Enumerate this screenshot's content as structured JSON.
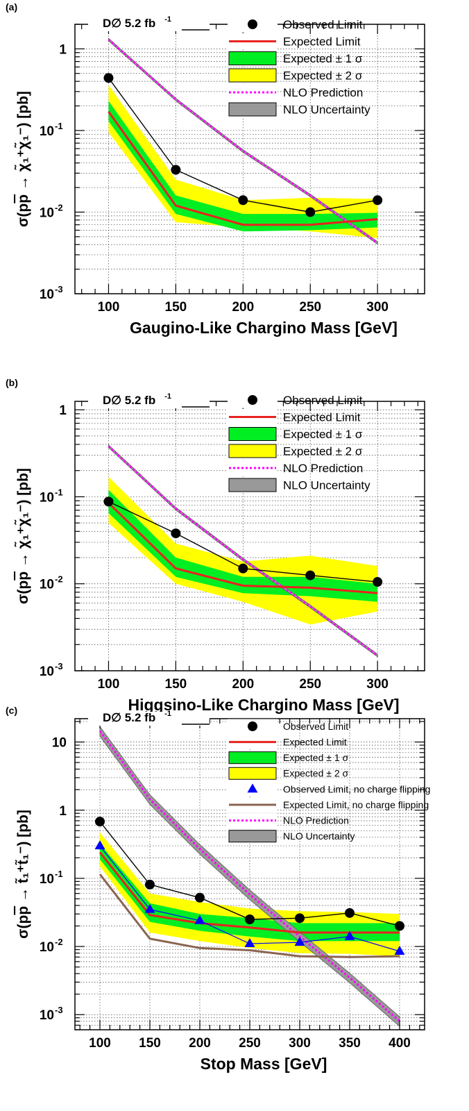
{
  "chart_data": [
    {
      "panel_label": "(a)",
      "type": "line",
      "experiment_label": "D∅ 5.2 fb",
      "experiment_sup": "-1",
      "xlabel": "Gaugino-Like Chargino Mass [GeV]",
      "ylabel_prefix": "σ(p",
      "ylabel_pbar": "p",
      "ylabel_arrow": " → ",
      "ylabel_final": "χ̃₁⁺χ̃₁⁻",
      "ylabel_suffix": ") [pb]",
      "xlim": [
        75,
        335
      ],
      "ylim": [
        0.001,
        2
      ],
      "yscale": "log",
      "grid": true,
      "xticks": [
        100,
        150,
        200,
        250,
        300
      ],
      "yticks": [
        {
          "v": 0.001,
          "b": "10",
          "e": "-3"
        },
        {
          "v": 0.01,
          "b": "10",
          "e": "-2"
        },
        {
          "v": 0.1,
          "b": "10",
          "e": "-1"
        },
        {
          "v": 1,
          "b": "1",
          "e": ""
        }
      ],
      "legend": {
        "placement": "top-right",
        "entries": [
          {
            "kind": "marker",
            "label": "Observed Limit",
            "color": "#000000"
          },
          {
            "kind": "line",
            "label": "Expected Limit",
            "color": "#e8231f"
          },
          {
            "kind": "box",
            "label": "Expected ± 1 σ",
            "color": "#00ee22"
          },
          {
            "kind": "box",
            "label": "Expected ± 2 σ",
            "color": "#ffff00"
          },
          {
            "kind": "dotted",
            "label": "NLO Prediction",
            "color": "#ff00ff"
          },
          {
            "kind": "band",
            "label": "NLO Uncertainty",
            "color": "#999999"
          }
        ]
      },
      "x": [
        100,
        150,
        200,
        250,
        300
      ],
      "series": [
        {
          "name": "Observed Limit",
          "values": [
            0.44,
            0.033,
            0.014,
            0.01,
            0.014
          ]
        },
        {
          "name": "Expected Limit",
          "values": [
            0.17,
            0.012,
            0.007,
            0.007,
            0.0082
          ]
        },
        {
          "name": "Expected ± 1 σ",
          "low": [
            0.13,
            0.0095,
            0.0058,
            0.006,
            0.0065
          ],
          "high": [
            0.23,
            0.016,
            0.0095,
            0.0095,
            0.0098
          ]
        },
        {
          "name": "Expected ± 2 σ",
          "low": [
            0.095,
            0.0075,
            0.0065,
            0.0058,
            0.0048
          ],
          "high": [
            0.36,
            0.025,
            0.014,
            0.015,
            0.0145
          ]
        },
        {
          "name": "NLO Prediction",
          "values": [
            1.3,
            0.24,
            0.056,
            0.016,
            0.0042
          ]
        },
        {
          "name": "NLO Uncertainty",
          "rel_width": 0.035
        }
      ]
    },
    {
      "panel_label": "(b)",
      "type": "line",
      "experiment_label": "D∅ 5.2 fb",
      "experiment_sup": "-1",
      "xlabel": "Higgsino-Like Chargino Mass [GeV]",
      "ylabel_prefix": "σ(p",
      "ylabel_pbar": "p",
      "ylabel_arrow": " → ",
      "ylabel_final": "χ̃₁⁺χ̃₁⁻",
      "ylabel_suffix": ") [pb]",
      "xlim": [
        75,
        335
      ],
      "ylim": [
        0.001,
        1.25
      ],
      "yscale": "log",
      "grid": true,
      "xticks": [
        100,
        150,
        200,
        250,
        300
      ],
      "yticks": [
        {
          "v": 0.001,
          "b": "10",
          "e": "-3"
        },
        {
          "v": 0.01,
          "b": "10",
          "e": "-2"
        },
        {
          "v": 0.1,
          "b": "10",
          "e": "-1"
        },
        {
          "v": 1,
          "b": "1",
          "e": ""
        }
      ],
      "legend": {
        "placement": "top-right",
        "entries": [
          {
            "kind": "marker",
            "label": "Observed Limit",
            "color": "#000000"
          },
          {
            "kind": "line",
            "label": "Expected Limit",
            "color": "#e8231f"
          },
          {
            "kind": "box",
            "label": "Expected ± 1 σ",
            "color": "#00ee22"
          },
          {
            "kind": "box",
            "label": "Expected ± 2 σ",
            "color": "#ffff00"
          },
          {
            "kind": "dotted",
            "label": "NLO Prediction",
            "color": "#ff00ff"
          },
          {
            "kind": "band",
            "label": "NLO Uncertainty",
            "color": "#999999"
          }
        ]
      },
      "x": [
        100,
        150,
        200,
        250,
        300
      ],
      "series": [
        {
          "name": "Observed Limit",
          "values": [
            0.088,
            0.038,
            0.015,
            0.0125,
            0.0105
          ]
        },
        {
          "name": "Expected Limit",
          "values": [
            0.085,
            0.015,
            0.0095,
            0.009,
            0.0078
          ]
        },
        {
          "name": "Expected ± 1 σ",
          "low": [
            0.065,
            0.012,
            0.0078,
            0.0072,
            0.0062
          ],
          "high": [
            0.12,
            0.02,
            0.012,
            0.012,
            0.01
          ]
        },
        {
          "name": "Expected ± 2 σ",
          "low": [
            0.05,
            0.01,
            0.0062,
            0.0034,
            0.0048
          ],
          "high": [
            0.17,
            0.029,
            0.018,
            0.021,
            0.016
          ]
        },
        {
          "name": "NLO Prediction",
          "values": [
            0.38,
            0.073,
            0.019,
            0.0055,
            0.0015
          ]
        },
        {
          "name": "NLO Uncertainty",
          "rel_width": 0.035
        }
      ]
    },
    {
      "panel_label": "(c)",
      "type": "line",
      "experiment_label": "D∅ 5.2 fb",
      "experiment_sup": "-1",
      "xlabel": "Stop Mass [GeV]",
      "ylabel_prefix": "σ(p",
      "ylabel_pbar": "p",
      "ylabel_arrow": " → ",
      "ylabel_final": "t̃₁⁺t̃₁⁻",
      "ylabel_suffix": ") [pb]",
      "xlim": [
        75,
        425
      ],
      "ylim": [
        0.0006,
        22
      ],
      "yscale": "log",
      "grid": true,
      "xticks": [
        100,
        150,
        200,
        250,
        300,
        350,
        400
      ],
      "yticks": [
        {
          "v": 0.001,
          "b": "10",
          "e": "-3"
        },
        {
          "v": 0.01,
          "b": "10",
          "e": "-2"
        },
        {
          "v": 0.1,
          "b": "10",
          "e": "-1"
        },
        {
          "v": 1,
          "b": "1",
          "e": ""
        },
        {
          "v": 10,
          "b": "10",
          "e": ""
        }
      ],
      "legend": {
        "placement": "top-right",
        "entries": [
          {
            "kind": "marker",
            "label": "Observed Limit",
            "color": "#000000"
          },
          {
            "kind": "line",
            "label": "Expected Limit",
            "color": "#e8231f"
          },
          {
            "kind": "box",
            "label": "Expected ± 1 σ",
            "color": "#00ee22"
          },
          {
            "kind": "box",
            "label": "Expected ± 2 σ",
            "color": "#ffff00"
          },
          {
            "kind": "triangle",
            "label": "Observed Limit, no charge flipping",
            "color": "#0000ff"
          },
          {
            "kind": "line",
            "label": "Expected Limit, no charge flipping",
            "color": "#8b6450"
          },
          {
            "kind": "dotted",
            "label": "NLO Prediction",
            "color": "#ff00ff"
          },
          {
            "kind": "band",
            "label": "NLO Uncertainty",
            "color": "#999999"
          }
        ]
      },
      "x": [
        100,
        150,
        200,
        250,
        300,
        350,
        400
      ],
      "series": [
        {
          "name": "Observed Limit",
          "values": [
            0.68,
            0.081,
            0.052,
            0.025,
            0.026,
            0.031,
            0.02
          ]
        },
        {
          "name": "Expected Limit",
          "values": [
            0.24,
            0.029,
            0.022,
            0.019,
            0.016,
            0.016,
            0.016
          ]
        },
        {
          "name": "Expected ± 1 σ",
          "low": [
            0.19,
            0.023,
            0.017,
            0.014,
            0.012,
            0.012,
            0.012
          ],
          "high": [
            0.32,
            0.043,
            0.03,
            0.026,
            0.022,
            0.022,
            0.022
          ]
        },
        {
          "name": "Expected ± 2 σ",
          "low": [
            0.15,
            0.016,
            0.012,
            0.0095,
            0.008,
            0.0078,
            0.0072
          ],
          "high": [
            0.47,
            0.06,
            0.045,
            0.036,
            0.033,
            0.032,
            0.03
          ]
        },
        {
          "name": "Observed Limit, no charge flipping",
          "values": [
            0.3,
            0.035,
            0.024,
            0.011,
            0.0115,
            0.014,
            0.0085
          ]
        },
        {
          "name": "Expected Limit, no charge flipping",
          "values": [
            0.115,
            0.013,
            0.0095,
            0.0088,
            0.0072,
            0.007,
            0.0072
          ]
        },
        {
          "name": "NLO Prediction",
          "values": [
            14.5,
            1.45,
            0.27,
            0.058,
            0.014,
            0.0035,
            0.0008
          ]
        },
        {
          "name": "NLO Uncertainty",
          "rel_width": 0.16
        }
      ]
    }
  ]
}
